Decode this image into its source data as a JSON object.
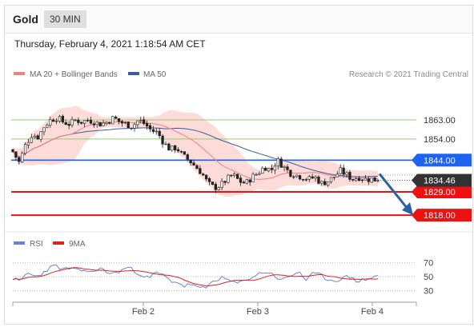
{
  "header": {
    "symbol": "Gold",
    "timeframe": "30 MIN"
  },
  "timestamp": "Thursday, February 4, 2021 1:18:54 AM CET",
  "legend": {
    "ma20": "MA 20 + Bollinger Bands",
    "ma50": "MA 50",
    "credit": "Research © 2021 Trading Central",
    "rsi": "RSI",
    "ma9": "9MA"
  },
  "colors": {
    "ma20": "#f08080",
    "ma50": "#3a5d9c",
    "band": "#fcd5d2",
    "up": "#ffffff",
    "down": "#222222",
    "resistance": "#8fd36a",
    "pivot": "#1e64f0",
    "support": "#ee1111",
    "current": "#333333",
    "arrow": "#2a62a8",
    "rsi": "#6b83d6",
    "ma9": "#dd2222"
  },
  "chart_data": [
    {
      "type": "candlestick",
      "x_labels": [
        "Feb 2",
        "Feb 3",
        "Feb 4"
      ],
      "current_price": "1834.46",
      "levels": [
        {
          "value": 1863.0,
          "label": "1863.00",
          "kind": "resistance"
        },
        {
          "value": 1854.0,
          "label": "1854.00",
          "kind": "resistance"
        },
        {
          "value": 1844.0,
          "label": "1844.00",
          "kind": "pivot"
        },
        {
          "value": 1829.0,
          "label": "1829.00",
          "kind": "support"
        },
        {
          "value": 1818.0,
          "label": "1818.00",
          "kind": "support"
        }
      ],
      "ylim": [
        1812,
        1880
      ],
      "close_path": [
        1848,
        1843,
        1851,
        1856,
        1855,
        1860,
        1863,
        1864,
        1862,
        1861,
        1863,
        1862,
        1863,
        1862,
        1861,
        1862,
        1864,
        1862,
        1861,
        1860,
        1863,
        1861,
        1858,
        1857,
        1852,
        1849,
        1850,
        1846,
        1844,
        1841,
        1838,
        1833,
        1831,
        1832,
        1835,
        1837,
        1834,
        1833,
        1836,
        1838,
        1841,
        1839,
        1844,
        1841,
        1838,
        1837,
        1836,
        1835,
        1836,
        1833,
        1834,
        1836,
        1839,
        1837,
        1835,
        1836,
        1835,
        1835,
        1834.46
      ]
    },
    {
      "type": "line",
      "name": "RSI",
      "yticks": [
        "70",
        "50",
        "30"
      ],
      "ylim": [
        20,
        80
      ],
      "rsi_path": [
        48,
        42,
        56,
        50,
        54,
        62,
        66,
        60,
        62,
        58,
        60,
        55,
        63,
        57,
        54,
        58,
        64,
        58,
        53,
        47,
        56,
        52,
        44,
        42,
        36,
        40,
        32,
        34,
        44,
        48,
        46,
        40,
        42,
        48,
        52,
        57,
        55,
        48,
        46,
        52,
        58,
        44,
        55,
        52,
        46,
        44,
        48,
        50,
        44,
        45,
        48,
        52
      ]
    }
  ]
}
